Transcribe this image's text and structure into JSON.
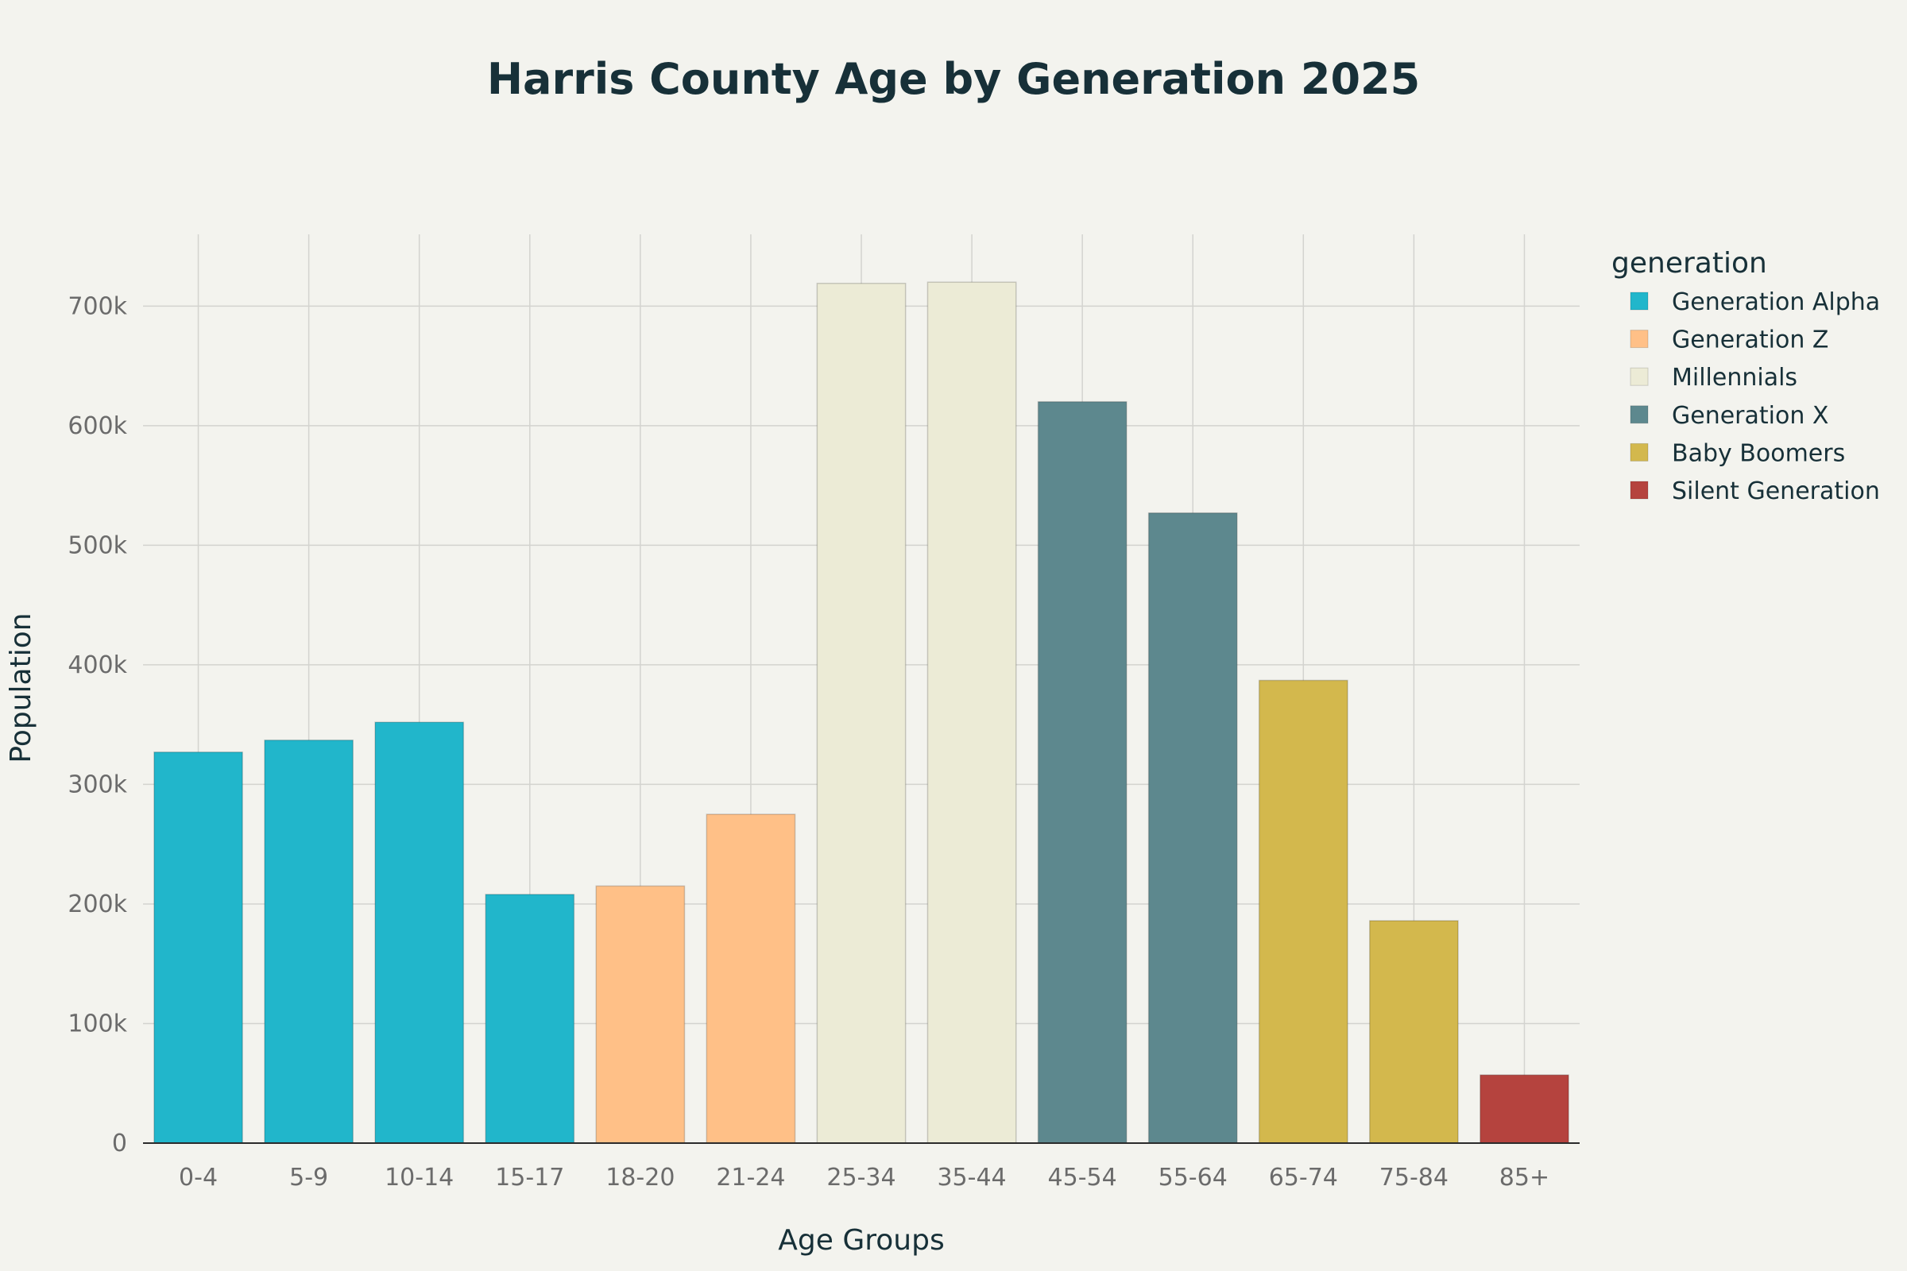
{
  "chart_data": {
    "type": "bar",
    "title": "Harris County Age by Generation 2025",
    "xlabel": "Age Groups",
    "ylabel": "Population",
    "ylim": [
      0,
      760000
    ],
    "yticks": [
      0,
      100000,
      200000,
      300000,
      400000,
      500000,
      600000,
      700000
    ],
    "ytick_labels": [
      "0",
      "100k",
      "200k",
      "300k",
      "400k",
      "500k",
      "600k",
      "700k"
    ],
    "grid": true,
    "legend_position": "right",
    "legend_title": "generation",
    "categories": [
      "0-4",
      "5-9",
      "10-14",
      "15-17",
      "18-20",
      "21-24",
      "25-34",
      "35-44",
      "45-54",
      "55-64",
      "65-74",
      "75-84",
      "85+"
    ],
    "values": [
      327000,
      337000,
      352000,
      208000,
      215000,
      275000,
      719000,
      720000,
      620000,
      527000,
      387000,
      186000,
      57000
    ],
    "generation_of_category": [
      "Generation Alpha",
      "Generation Alpha",
      "Generation Alpha",
      "Generation Alpha",
      "Generation Z",
      "Generation Z",
      "Millennials",
      "Millennials",
      "Generation X",
      "Generation X",
      "Baby Boomers",
      "Baby Boomers",
      "Silent Generation"
    ],
    "series": [
      {
        "name": "Generation Alpha",
        "color": "#21b6cb"
      },
      {
        "name": "Generation Z",
        "color": "#ffc087"
      },
      {
        "name": "Millennials",
        "color": "#ecebd6"
      },
      {
        "name": "Generation X",
        "color": "#5d888e"
      },
      {
        "name": "Baby Boomers",
        "color": "#d3b84d"
      },
      {
        "name": "Silent Generation",
        "color": "#b5433e"
      }
    ]
  }
}
